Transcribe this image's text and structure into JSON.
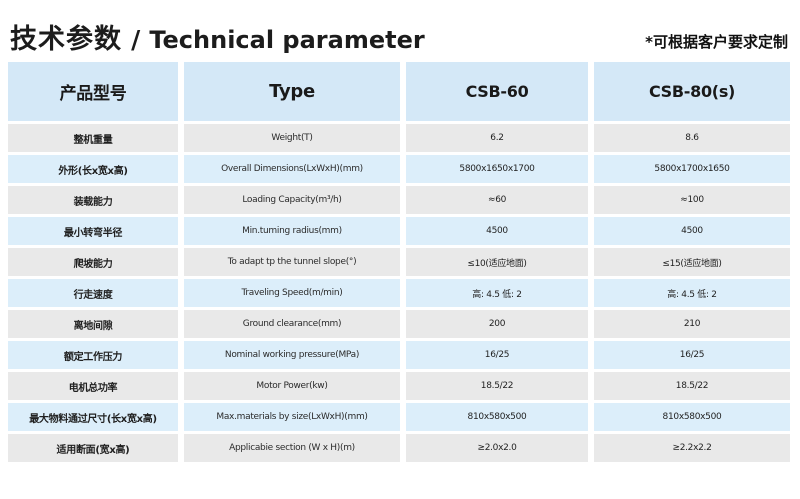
{
  "header": {
    "title_cn": "技术参数",
    "title_sep": "/",
    "title_en": "Technical parameter",
    "note": "*可根据客户要求定制"
  },
  "table": {
    "headers": [
      "产品型号",
      "Type",
      "CSB-60",
      "CSB-80(s)"
    ],
    "rows": [
      {
        "name_cn": "整机重量",
        "name_en": "Weight(T)",
        "csb60": "6.2",
        "csb80": "8.6"
      },
      {
        "name_cn": "外形(长x宽x高)",
        "name_en": "Overall Dimensions(LxWxH)(mm)",
        "csb60": "5800x1650x1700",
        "csb80": "5800x1700x1650"
      },
      {
        "name_cn": "装载能力",
        "name_en": "Loading Capacity(m³/h)",
        "csb60": "≈60",
        "csb80": "≈100"
      },
      {
        "name_cn": "最小转弯半径",
        "name_en": "Min.tuming radius(mm)",
        "csb60": "4500",
        "csb80": "4500"
      },
      {
        "name_cn": "爬坡能力",
        "name_en": "To adapt tp the tunnel slope(°)",
        "csb60": "≤10(适应地面)",
        "csb80": "≤15(适应地面)"
      },
      {
        "name_cn": "行走速度",
        "name_en": "Traveling Speed(m/min)",
        "csb60": "高: 4.5 低: 2",
        "csb80": "高: 4.5 低: 2"
      },
      {
        "name_cn": "离地间隙",
        "name_en": "Ground clearance(mm)",
        "csb60": "200",
        "csb80": "210"
      },
      {
        "name_cn": "额定工作压力",
        "name_en": "Nominal working pressure(MPa)",
        "csb60": "16/25",
        "csb80": "16/25"
      },
      {
        "name_cn": "电机总功率",
        "name_en": "Motor Power(kw)",
        "csb60": "18.5/22",
        "csb80": "18.5/22"
      },
      {
        "name_cn": "最大物料通过尺寸(长x宽x高)",
        "name_en": "Max.materials by size(LxWxH)(mm)",
        "csb60": "810x580x500",
        "csb80": "810x580x500"
      },
      {
        "name_cn": "适用断面(宽x高)",
        "name_en": "Applicabie section (W x H)(m)",
        "csb60": "≥2.0x2.0",
        "csb80": "≥2.2x2.2"
      }
    ],
    "colors": {
      "header_bg": "#d4e8f7",
      "row_gray_bg": "#e9e9e9",
      "row_blue_bg": "#dceefa"
    }
  }
}
